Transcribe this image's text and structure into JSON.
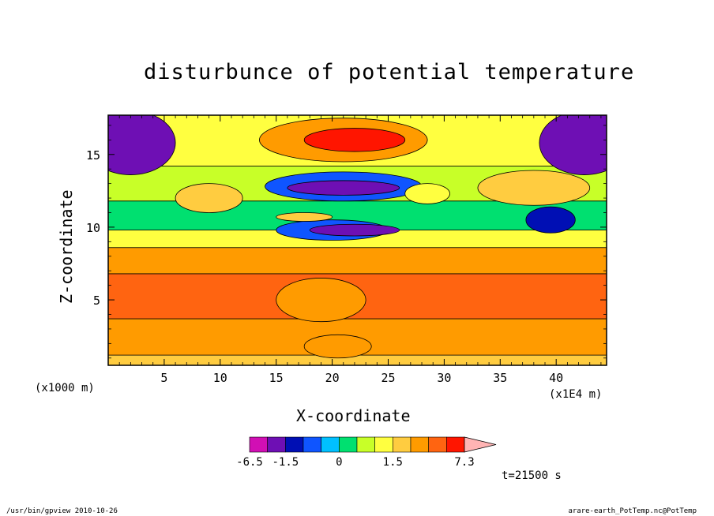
{
  "title": "disturbunce of potential temperature",
  "footer": {
    "left": "/usr/bin/gpview  2010-10-26",
    "right": "arare-earth_PotTemp.nc@PotTemp"
  },
  "time_label": "t=21500 s",
  "chart_data": {
    "type": "heatmap",
    "title": "disturbunce of potential temperature",
    "xlabel": "X-coordinate",
    "ylabel": "Z-coordinate",
    "x_unit": "(x1000 m)",
    "x_scale": "(x1E4 m)",
    "xlim": [
      0,
      44.5
    ],
    "ylim": [
      0.5,
      17.7
    ],
    "xticks": [
      5,
      10,
      15,
      20,
      25,
      30,
      35,
      40
    ],
    "yticks": [
      5,
      10,
      15
    ],
    "xtick_labels": [
      "5",
      "10",
      "15",
      "20",
      "25",
      "30",
      "35",
      "40"
    ],
    "ytick_labels": [
      "5",
      "10",
      "15"
    ],
    "colorbar": {
      "levels": [
        -6.5,
        -5.0,
        -1.5,
        -1.0,
        -0.5,
        0,
        0.5,
        1.0,
        1.5,
        2.5,
        3.5,
        5.0,
        7.3
      ],
      "labels": [
        "-6.5",
        "-1.5",
        "0",
        "1.5",
        "7.3"
      ],
      "label_values": [
        -6.5,
        -1.5,
        0,
        1.5,
        7.3
      ],
      "colors": [
        "#d10fb4",
        "#6e0fb4",
        "#000fb4",
        "#0f55ff",
        "#00c0ff",
        "#00e070",
        "#c8ff28",
        "#ffff40",
        "#ffcc40",
        "#ff9b00",
        "#ff6411",
        "#ff1500",
        "#ff7878"
      ],
      "extend": "max",
      "extend_color": "#ffb4b4"
    },
    "bands": [
      {
        "z_bottom": 0.5,
        "z_top": 1.2,
        "value": 2.0
      },
      {
        "z_bottom": 1.2,
        "z_top": 3.7,
        "value": 3.0
      },
      {
        "z_bottom": 3.7,
        "z_top": 6.8,
        "value": 4.2
      },
      {
        "z_bottom": 6.8,
        "z_top": 8.6,
        "value": 3.0
      },
      {
        "z_bottom": 8.6,
        "z_top": 9.8,
        "value": 1.2
      },
      {
        "z_bottom": 9.8,
        "z_top": 11.8,
        "value": 0.3
      },
      {
        "z_bottom": 11.8,
        "z_top": 14.2,
        "value": 0.8
      },
      {
        "z_bottom": 14.2,
        "z_top": 17.7,
        "value": 1.0
      }
    ],
    "features": [
      {
        "x": 2.2,
        "z": 16.0,
        "rx": 2.3,
        "rz": 1.8,
        "value": -6.5
      },
      {
        "x": 42.3,
        "z": 16.0,
        "rx": 2.3,
        "rz": 1.8,
        "value": -6.5
      },
      {
        "x": 2.0,
        "z": 15.8,
        "rx": 4.0,
        "rz": 2.2,
        "value": -5.0
      },
      {
        "x": 42.5,
        "z": 15.8,
        "rx": 4.0,
        "rz": 2.2,
        "value": -5.0
      },
      {
        "x": 21.0,
        "z": 16.0,
        "rx": 7.5,
        "rz": 1.5,
        "value": 3.0
      },
      {
        "x": 22.0,
        "z": 16.0,
        "rx": 4.5,
        "rz": 0.8,
        "value": 5.0
      },
      {
        "x": 21.0,
        "z": 12.8,
        "rx": 7.0,
        "rz": 1.0,
        "value": -1.0
      },
      {
        "x": 21.0,
        "z": 12.7,
        "rx": 5.0,
        "rz": 0.5,
        "value": -5.0
      },
      {
        "x": 20.0,
        "z": 9.8,
        "rx": 5.0,
        "rz": 0.7,
        "value": -1.0
      },
      {
        "x": 22.0,
        "z": 9.8,
        "rx": 4.0,
        "rz": 0.4,
        "value": -5.0
      },
      {
        "x": 39.5,
        "z": 10.5,
        "rx": 2.2,
        "rz": 0.9,
        "value": -1.5
      },
      {
        "x": 9.0,
        "z": 12.0,
        "rx": 3.0,
        "rz": 1.0,
        "value": 2.0
      },
      {
        "x": 28.5,
        "z": 12.3,
        "rx": 2.0,
        "rz": 0.7,
        "value": 1.2
      },
      {
        "x": 38.0,
        "z": 12.7,
        "rx": 5.0,
        "rz": 1.2,
        "value": 1.8
      },
      {
        "x": 17.5,
        "z": 10.7,
        "rx": 2.5,
        "rz": 0.3,
        "value": 1.8
      },
      {
        "x": 19.0,
        "z": 5.0,
        "rx": 4.0,
        "rz": 1.5,
        "value": 3.0
      },
      {
        "x": 20.5,
        "z": 1.8,
        "rx": 3.0,
        "rz": 0.8,
        "value": 2.5
      }
    ]
  }
}
